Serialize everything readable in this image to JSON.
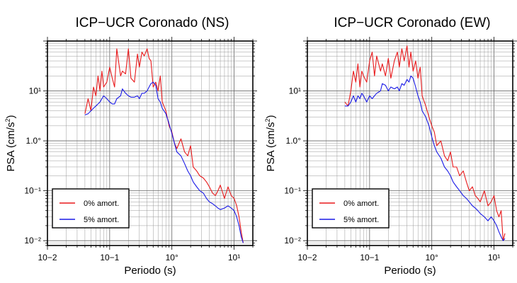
{
  "chart_data": [
    {
      "type": "line",
      "title": "ICP−UCR Coronado (NS)",
      "xlabel": "Periodo (s)",
      "ylabel": "PSA (cm/s2)",
      "xscale": "log",
      "yscale": "log",
      "xlim": [
        0.01,
        20
      ],
      "ylim": [
        0.008,
        100
      ],
      "grid": true,
      "legend_position": "bottom-left",
      "xtick_labels": [
        "10−2",
        "10−1",
        "10°",
        "10¹"
      ],
      "ytick_labels": [
        "10¹",
        "1.0°",
        "10⁻¹",
        "10⁻²"
      ],
      "series": [
        {
          "name": "0% amort.",
          "color": "#e8191b",
          "x": [
            0.04,
            0.045,
            0.05,
            0.055,
            0.06,
            0.065,
            0.07,
            0.075,
            0.08,
            0.09,
            0.1,
            0.11,
            0.12,
            0.13,
            0.15,
            0.16,
            0.18,
            0.2,
            0.22,
            0.25,
            0.28,
            0.3,
            0.33,
            0.36,
            0.4,
            0.43,
            0.46,
            0.5,
            0.55,
            0.6,
            0.65,
            0.7,
            0.8,
            0.9,
            1.0,
            1.1,
            1.2,
            1.4,
            1.6,
            1.8,
            2.0,
            2.2,
            2.5,
            2.8,
            3.2,
            3.6,
            4.0,
            4.5,
            5.0,
            5.5,
            6.0,
            7.0,
            8.0,
            9.0,
            10.0,
            11.0,
            12.0,
            13.0,
            14.0
          ],
          "y": [
            3.5,
            7,
            4,
            12,
            8,
            20,
            10,
            25,
            12,
            15,
            30,
            18,
            12,
            70,
            20,
            25,
            22,
            70,
            18,
            15,
            55,
            30,
            60,
            50,
            70,
            45,
            40,
            12,
            15,
            10,
            20,
            6,
            4,
            2.0,
            1.5,
            0.9,
            0.7,
            1.1,
            0.6,
            0.5,
            0.8,
            0.3,
            0.25,
            0.2,
            0.18,
            0.15,
            0.12,
            0.09,
            0.08,
            0.1,
            0.13,
            0.07,
            0.12,
            0.08,
            0.07,
            0.05,
            0.03,
            0.015,
            0.009
          ]
        },
        {
          "name": "5% amort.",
          "color": "#1a1ae6",
          "x": [
            0.04,
            0.045,
            0.05,
            0.055,
            0.06,
            0.065,
            0.07,
            0.075,
            0.08,
            0.09,
            0.1,
            0.11,
            0.12,
            0.13,
            0.15,
            0.16,
            0.18,
            0.2,
            0.22,
            0.25,
            0.28,
            0.3,
            0.33,
            0.36,
            0.4,
            0.43,
            0.46,
            0.5,
            0.55,
            0.6,
            0.65,
            0.7,
            0.8,
            0.9,
            1.0,
            1.1,
            1.2,
            1.4,
            1.6,
            1.8,
            2.0,
            2.2,
            2.5,
            2.8,
            3.2,
            3.6,
            4.0,
            4.5,
            5.0,
            5.5,
            6.0,
            7.0,
            8.0,
            9.0,
            10.0,
            11.0,
            12.0,
            13.0,
            14.0
          ],
          "y": [
            3.3,
            3.5,
            4,
            4.5,
            5,
            5.5,
            6,
            7,
            8,
            7,
            6,
            5.5,
            5.5,
            7,
            8,
            11,
            9,
            8,
            7.5,
            7.5,
            8,
            7,
            9,
            9,
            10,
            12,
            14,
            15,
            13,
            7,
            6,
            4.5,
            3.5,
            2.2,
            1.4,
            0.9,
            0.6,
            0.5,
            0.35,
            0.25,
            0.2,
            0.15,
            0.12,
            0.1,
            0.09,
            0.07,
            0.06,
            0.055,
            0.05,
            0.045,
            0.042,
            0.045,
            0.05,
            0.045,
            0.04,
            0.03,
            0.02,
            0.012,
            0.009
          ]
        }
      ]
    },
    {
      "type": "line",
      "title": "ICP−UCR Coronado (EW)",
      "xlabel": "Periodo (s)",
      "ylabel": "PSA (cm/s2)",
      "xscale": "log",
      "yscale": "log",
      "xlim": [
        0.01,
        20
      ],
      "ylim": [
        0.008,
        100
      ],
      "grid": true,
      "legend_position": "bottom-left",
      "xtick_labels": [
        "10−2",
        "10−1",
        "10°",
        "10¹"
      ],
      "ytick_labels": [
        "10¹",
        "1.0°",
        "10⁻¹",
        "10⁻²"
      ],
      "series": [
        {
          "name": "0% amort.",
          "color": "#e8191b",
          "x": [
            0.04,
            0.045,
            0.05,
            0.055,
            0.06,
            0.065,
            0.07,
            0.075,
            0.08,
            0.09,
            0.1,
            0.11,
            0.12,
            0.13,
            0.15,
            0.16,
            0.18,
            0.2,
            0.22,
            0.25,
            0.28,
            0.3,
            0.33,
            0.36,
            0.4,
            0.43,
            0.46,
            0.5,
            0.55,
            0.6,
            0.65,
            0.7,
            0.8,
            0.9,
            1.0,
            1.1,
            1.2,
            1.4,
            1.6,
            1.8,
            2.0,
            2.2,
            2.5,
            2.8,
            3.2,
            3.6,
            4.0,
            4.5,
            5.0,
            5.5,
            6.0,
            7.0,
            8.0,
            9.0,
            10.0,
            11.0,
            12.0,
            13.0,
            14.0,
            15.0
          ],
          "y": [
            6,
            5,
            10,
            25,
            15,
            35,
            12,
            25,
            20,
            15,
            40,
            60,
            20,
            50,
            25,
            35,
            20,
            45,
            18,
            40,
            60,
            30,
            70,
            40,
            80,
            30,
            60,
            25,
            40,
            18,
            30,
            8,
            5,
            3.0,
            2.0,
            1.5,
            0.8,
            1.0,
            0.5,
            0.4,
            0.6,
            0.3,
            0.3,
            0.2,
            0.25,
            0.15,
            0.1,
            0.12,
            0.08,
            0.07,
            0.06,
            0.1,
            0.05,
            0.06,
            0.08,
            0.04,
            0.03,
            0.04,
            0.01,
            0.014
          ]
        },
        {
          "name": "5% amort.",
          "color": "#1a1ae6",
          "x": [
            0.04,
            0.045,
            0.05,
            0.055,
            0.06,
            0.065,
            0.07,
            0.075,
            0.08,
            0.09,
            0.1,
            0.11,
            0.12,
            0.13,
            0.15,
            0.16,
            0.18,
            0.2,
            0.22,
            0.25,
            0.28,
            0.3,
            0.33,
            0.36,
            0.4,
            0.43,
            0.46,
            0.5,
            0.55,
            0.6,
            0.65,
            0.7,
            0.8,
            0.9,
            1.0,
            1.1,
            1.2,
            1.4,
            1.6,
            1.8,
            2.0,
            2.2,
            2.5,
            2.8,
            3.2,
            3.6,
            4.0,
            4.5,
            5.0,
            5.5,
            6.0,
            7.0,
            8.0,
            9.0,
            10.0,
            11.0,
            12.0,
            13.0,
            14.0,
            15.0
          ],
          "y": [
            5,
            5,
            6,
            8,
            6,
            8,
            7,
            9,
            8,
            6,
            8,
            7,
            8,
            9,
            10,
            14,
            13,
            10,
            12,
            11,
            12,
            10,
            14,
            13,
            17,
            15,
            20,
            18,
            12,
            8,
            6,
            4,
            3,
            2.0,
            1.2,
            0.8,
            0.6,
            0.45,
            0.3,
            0.25,
            0.2,
            0.15,
            0.12,
            0.1,
            0.08,
            0.07,
            0.06,
            0.05,
            0.045,
            0.04,
            0.035,
            0.03,
            0.025,
            0.03,
            0.025,
            0.02,
            0.015,
            0.012,
            0.01,
            0.011
          ]
        }
      ]
    }
  ]
}
